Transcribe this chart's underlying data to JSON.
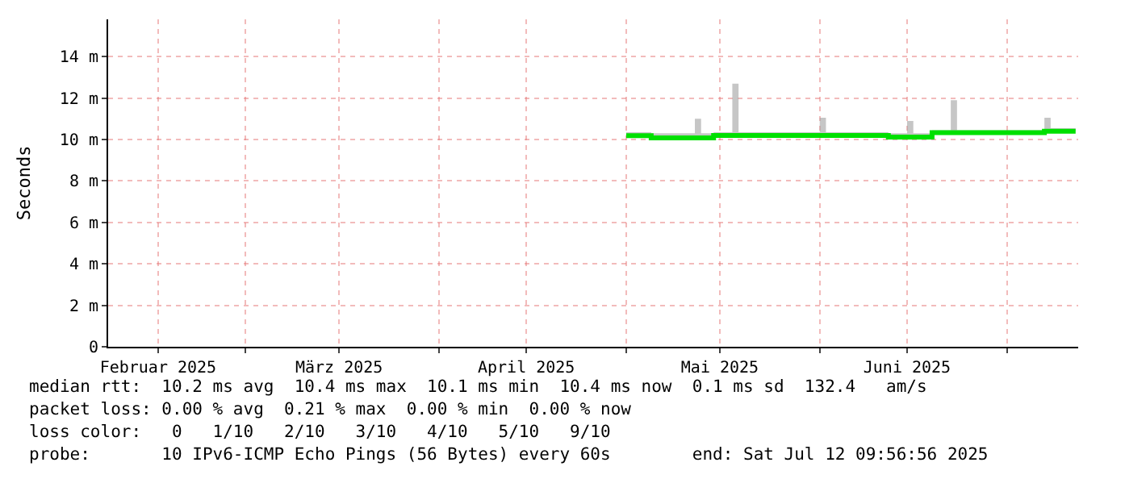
{
  "chart_data": {
    "type": "step",
    "ylabel": "Seconds",
    "x": [
      "2025-05-01",
      "2025-05-05",
      "2025-05-12",
      "2025-05-13",
      "2025-05-15",
      "2025-05-18",
      "2025-05-19",
      "2025-06-01",
      "2025-06-02",
      "2025-06-12",
      "2025-06-15",
      "2025-06-16",
      "2025-06-19",
      "2025-06-22",
      "2025-06-23",
      "2025-07-07",
      "2025-07-08",
      "2025-07-12"
    ],
    "series": [
      {
        "color": "#00e000",
        "values": [
          10.19,
          10.08,
          10.08,
          10.08,
          10.2,
          10.2,
          10.2,
          10.2,
          10.2,
          10.12,
          10.12,
          10.12,
          10.33,
          10.33,
          10.33,
          10.4,
          10.4,
          10.4
        ],
        "lower": [
          10.19,
          10.08,
          10.08,
          10.08,
          10.2,
          10.2,
          10.2,
          10.2,
          10.2,
          10.12,
          10.12,
          10.12,
          10.33,
          10.33,
          10.33,
          10.4,
          10.4,
          10.4
        ],
        "upper": [
          10.35,
          10.3,
          11.0,
          10.3,
          10.35,
          12.7,
          10.35,
          11.05,
          10.35,
          10.3,
          10.9,
          10.3,
          10.45,
          11.9,
          10.45,
          11.05,
          10.55,
          10.55
        ]
      }
    ],
    "xlim": [
      "2025-02-07",
      "2025-07-12T09:56"
    ],
    "xticks": [
      {
        "value": "2025-03-01",
        "label": null
      },
      {
        "value": "2025-04-01",
        "label": null
      },
      {
        "value": "2025-05-01",
        "label": null
      },
      {
        "value": "2025-06-01",
        "label": null
      },
      {
        "value": "2025-07-01",
        "label": null
      },
      {
        "value": "2025-02-15",
        "label": "Februar 2025"
      },
      {
        "value": "2025-03-16",
        "label": "März 2025"
      },
      {
        "value": "2025-04-15",
        "label": "April 2025"
      },
      {
        "value": "2025-05-16",
        "label": "Mai 2025"
      },
      {
        "value": "2025-06-15",
        "label": "Juni 2025"
      }
    ],
    "ylim": [
      0,
      15.8
    ],
    "yticks": [
      0,
      {
        "value": 2,
        "label": "2 m"
      },
      {
        "value": 4,
        "label": "4 m"
      },
      {
        "value": 6,
        "label": "6 m"
      },
      {
        "value": 8,
        "label": "8 m"
      },
      {
        "value": 10,
        "label": "10 m"
      },
      {
        "value": 12,
        "label": "12 m"
      },
      {
        "value": 14,
        "label": "14 m"
      }
    ],
    "grid": true,
    "annotations": [
      "median rtt:  10.2 ms avg  10.4 ms max  10.1 ms min  10.4 ms now  0.1 ms sd  132.4   am/s",
      "packet loss: 0.00 % avg  0.21 % max  0.00 % min  0.00 % now",
      "loss color:   0   1/10   2/10   3/10   4/10   5/10   9/10",
      "probe:       10 IPv6-ICMP Echo Pings (56 Bytes) every 60s        end: Sat Jul 12 09:56:56 2025"
    ]
  }
}
